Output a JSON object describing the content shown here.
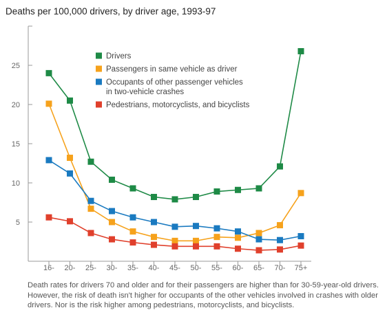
{
  "title": "Deaths per 100,000 drivers, by driver age, 1993-97",
  "caption": "Death rates for drivers 70 and older and for their passengers are higher than for 30-59-year-old drivers. However, the risk of death isn't higher for occupants of the other vehicles involved in crashes with older drivers. Nor is the risk higher among pedestrians, motorcyclists, and bicyclists.",
  "chart_data": {
    "type": "line",
    "title": "Deaths per 100,000 drivers, by driver age, 1993-97",
    "xlabel": "",
    "ylabel": "",
    "categories": [
      "16-",
      "20-",
      "25-",
      "30-",
      "35-",
      "40-",
      "45-",
      "50-",
      "55-",
      "60-",
      "65-",
      "70-",
      "75+"
    ],
    "ylim": [
      0,
      30
    ],
    "yticks": [
      5,
      10,
      15,
      20,
      25
    ],
    "grid": false,
    "legend_position": "top-right",
    "series": [
      {
        "name": "Drivers",
        "color": "#1e8a46",
        "values": [
          24.0,
          20.5,
          12.7,
          10.4,
          9.3,
          8.2,
          7.9,
          8.2,
          8.9,
          9.1,
          9.3,
          12.1,
          26.8
        ]
      },
      {
        "name": "Passengers in same vehicle as driver",
        "color": "#f6a21c",
        "values": [
          20.1,
          13.2,
          6.7,
          5.0,
          3.8,
          3.1,
          2.6,
          2.6,
          3.1,
          3.0,
          3.6,
          4.6,
          8.7
        ]
      },
      {
        "name": "Occupants of other passenger vehicles in two-vehicle crashes",
        "label_lines": [
          "Occupants of other passenger vehicles",
          "in two-vehicle crashes"
        ],
        "color": "#1a7ac0",
        "values": [
          12.9,
          11.2,
          7.7,
          6.4,
          5.6,
          5.0,
          4.4,
          4.5,
          4.2,
          3.8,
          2.8,
          2.7,
          3.2
        ]
      },
      {
        "name": "Pedestrians, motorcyclists, and bicyclists",
        "color": "#e0402c",
        "values": [
          5.6,
          5.1,
          3.6,
          2.8,
          2.4,
          2.1,
          1.9,
          1.9,
          1.9,
          1.6,
          1.4,
          1.5,
          2.0
        ]
      }
    ]
  }
}
